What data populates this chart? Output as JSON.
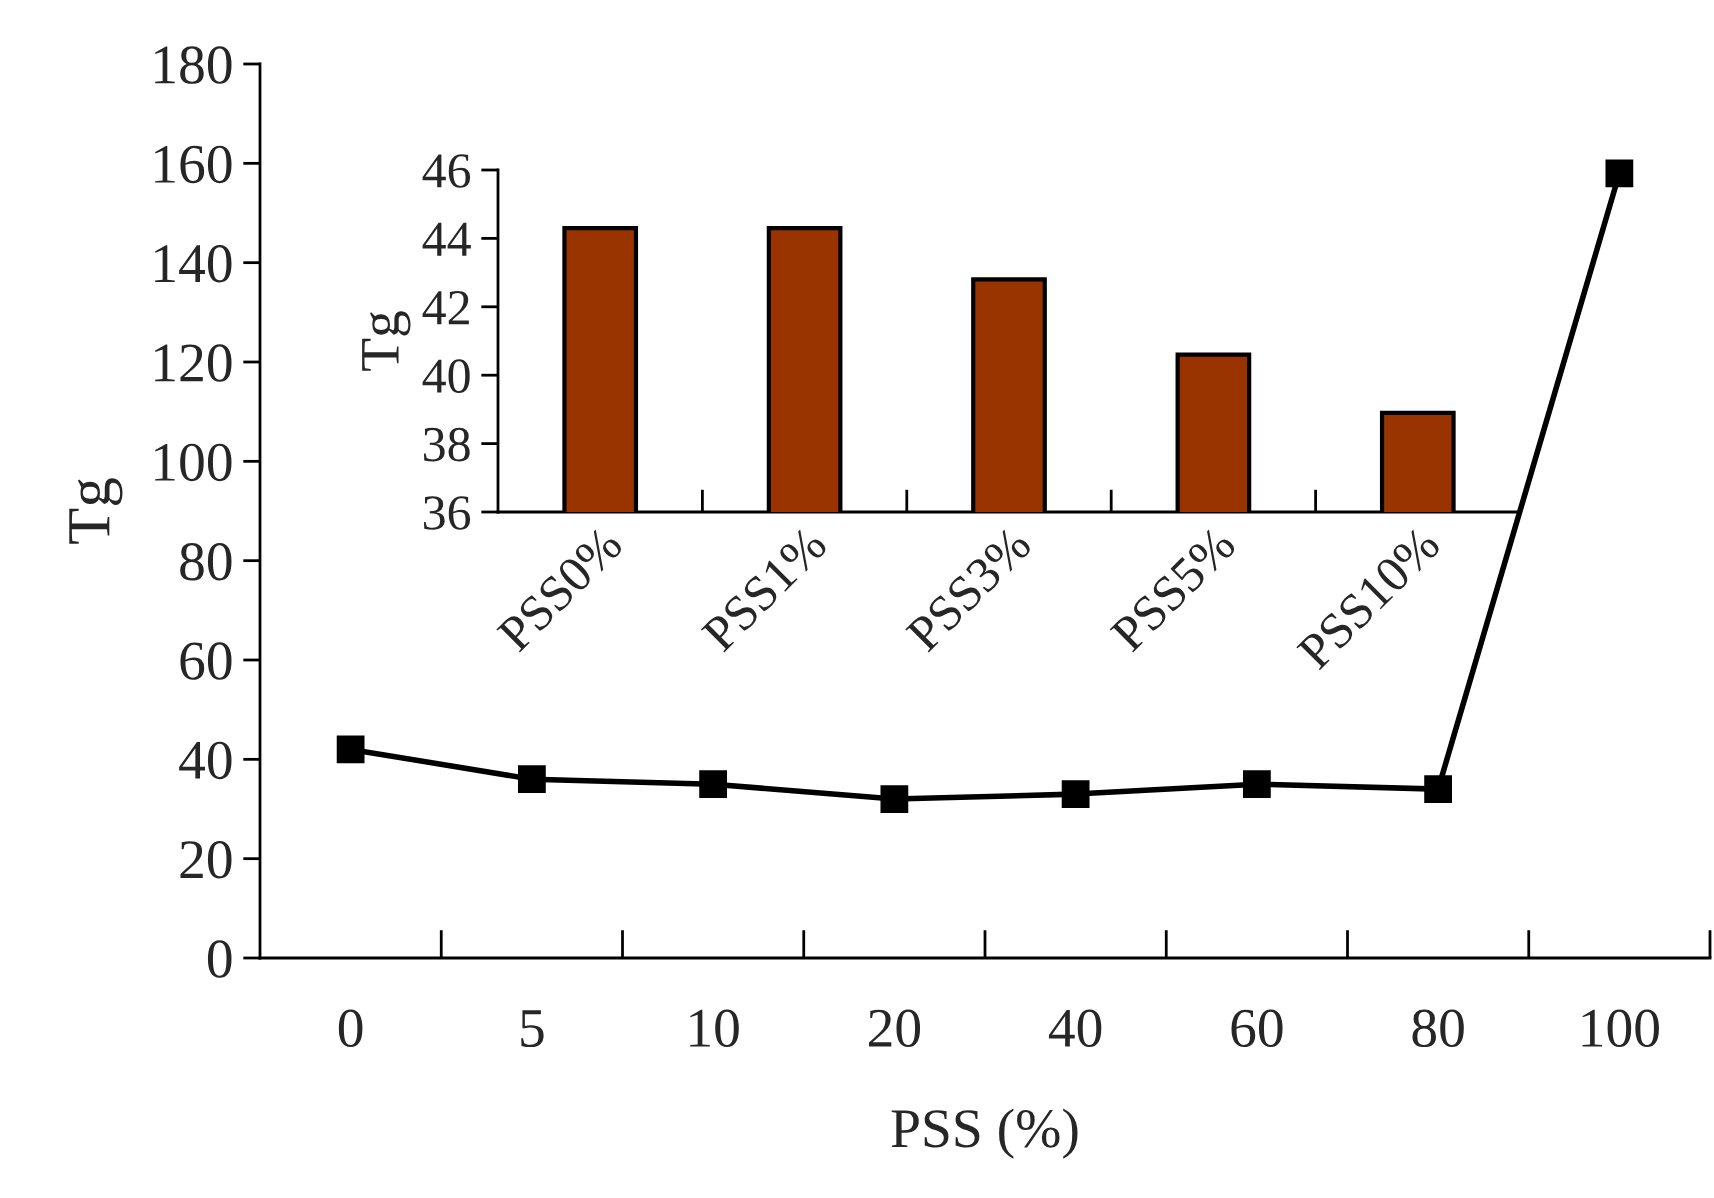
{
  "chart_data": [
    {
      "type": "line",
      "xlabel": "PSS (%)",
      "ylabel": "Tg",
      "categories": [
        "0",
        "5",
        "10",
        "20",
        "40",
        "60",
        "80",
        "100"
      ],
      "series": [
        {
          "color": "#000000",
          "values": [
            42,
            36,
            35,
            32,
            33,
            35,
            34,
            158
          ]
        }
      ],
      "ylim": [
        0,
        180
      ],
      "yticks": [
        0,
        20,
        40,
        60,
        80,
        100,
        120,
        140,
        160,
        180
      ],
      "marker": "square",
      "line_style": "solid",
      "grid": false,
      "legend": false
    },
    {
      "type": "bar",
      "ylabel": "Tg",
      "categories": [
        "PSS0%",
        "PSS1%",
        "PSS3%",
        "PSS5%",
        "PSS10%"
      ],
      "series": [
        {
          "color": "#993300",
          "values": [
            44.3,
            44.3,
            42.8,
            40.6,
            38.9
          ]
        }
      ],
      "ylim": [
        36,
        46
      ],
      "yticks": [
        36,
        38,
        40,
        42,
        44,
        46
      ],
      "grid": false,
      "legend": false
    }
  ]
}
